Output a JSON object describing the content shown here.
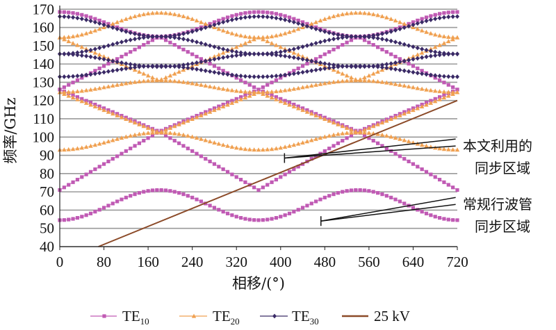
{
  "chart_data": {
    "type": "line",
    "title": "",
    "xlabel": "相移/(°)",
    "ylabel": "频率/GHz",
    "xlim": [
      0,
      720
    ],
    "ylim": [
      40,
      172
    ],
    "xticks": [
      "0",
      "80",
      "160",
      "240",
      "320",
      "400",
      "480",
      "560",
      "640",
      "720"
    ],
    "yticks": [
      "40",
      "50",
      "60",
      "70",
      "80",
      "90",
      "100",
      "110",
      "120",
      "130",
      "140",
      "150",
      "160",
      "170"
    ],
    "grid": "horizontal",
    "legend_position": "bottom",
    "series": [
      {
        "name": "TE10",
        "label_main": "TE",
        "label_sub": "10",
        "color": "#c05ab4",
        "marker": "square",
        "bands": [
          {
            "fmin": 54.5,
            "fmax": 71,
            "shape": "cos",
            "phase": 0
          },
          {
            "fmin": 71,
            "fmax": 103,
            "shape": "linear",
            "phase": 0
          },
          {
            "fmin": 103,
            "fmax": 126,
            "shape": "linear",
            "phase": 180
          },
          {
            "fmin": 126,
            "fmax": 155,
            "shape": "linear",
            "phase": 0
          },
          {
            "fmin": 155,
            "fmax": 168.5,
            "shape": "cos",
            "phase": 180
          }
        ]
      },
      {
        "name": "TE20",
        "label_main": "TE",
        "label_sub": "20",
        "color": "#f0a050",
        "marker": "triangle",
        "bands": [
          {
            "fmin": 93,
            "fmax": 102.5,
            "shape": "cos",
            "phase": 0
          },
          {
            "fmin": 102.5,
            "fmax": 124.5,
            "shape": "linear",
            "phase": 180
          },
          {
            "fmin": 124.5,
            "fmax": 131,
            "shape": "cos",
            "phase": 0
          },
          {
            "fmin": 131,
            "fmax": 154.5,
            "shape": "linear",
            "phase": 180
          },
          {
            "fmin": 154.5,
            "fmax": 168,
            "shape": "cos",
            "phase": 0
          }
        ]
      },
      {
        "name": "TE30",
        "label_main": "TE",
        "label_sub": "30",
        "color": "#3a2a66",
        "marker": "diamond",
        "bands": [
          {
            "fmin": 133,
            "fmax": 139,
            "shape": "cos",
            "phase": 0
          },
          {
            "fmin": 138.5,
            "fmax": 145.5,
            "shape": "cos",
            "phase": 180
          },
          {
            "fmin": 145.5,
            "fmax": 155,
            "shape": "cos",
            "phase": 0
          },
          {
            "fmin": 155,
            "fmax": 166,
            "shape": "cos",
            "phase": 180
          }
        ]
      },
      {
        "name": "25 kV",
        "label_main": "25 kV",
        "label_sub": "",
        "color": "#8b4a28",
        "marker": "none",
        "x": [
          70,
          720
        ],
        "y": [
          40,
          120
        ]
      }
    ],
    "annotations": [
      {
        "line1": "本文利用的",
        "line2": "同步区域",
        "from_point": [
          407,
          88.5
        ],
        "to_point": [
          717,
          97
        ]
      },
      {
        "line1": "常规行波管",
        "line2": "同步区域",
        "from_point": [
          473,
          54
        ],
        "to_point": [
          717,
          65
        ]
      }
    ]
  }
}
